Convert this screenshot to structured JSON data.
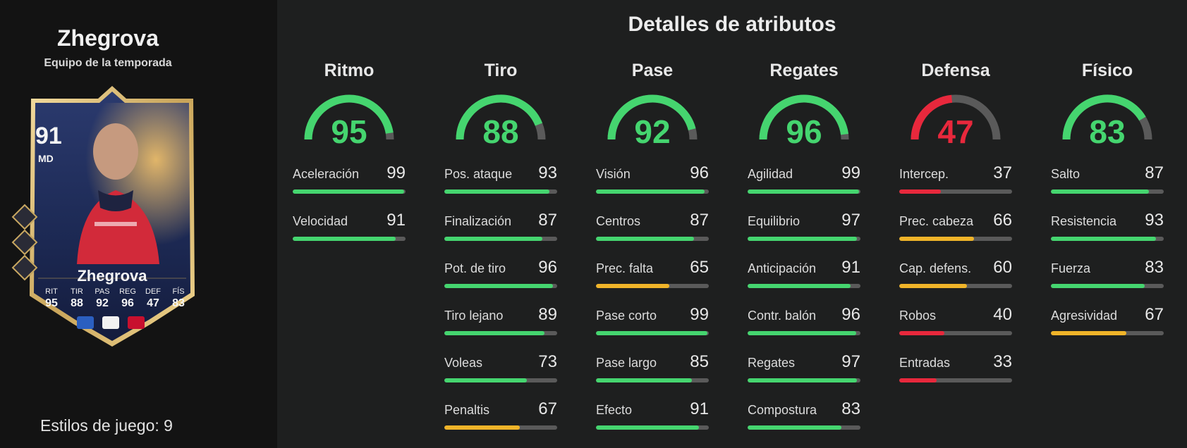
{
  "title": "Detalles de atributos",
  "player": {
    "name": "Zhegrova",
    "version": "Equipo de la temporada",
    "rating": "91",
    "position": "MD",
    "card_name": "Zhegrova",
    "playstyles_label": "Estilos de juego: 9",
    "card_stats": [
      {
        "label": "RIT",
        "value": "95"
      },
      {
        "label": "TIR",
        "value": "88"
      },
      {
        "label": "PAS",
        "value": "92"
      },
      {
        "label": "REG",
        "value": "96"
      },
      {
        "label": "DEF",
        "value": "47"
      },
      {
        "label": "FÍS",
        "value": "83"
      }
    ],
    "badges": [
      "nation-flag-icon",
      "league-logo-icon",
      "club-crest-icon"
    ]
  },
  "colors": {
    "green": "#45d56f",
    "yellow": "#f0b429",
    "red": "#e8283c",
    "track": "#5a5a5a"
  },
  "categories": [
    {
      "name": "Ritmo",
      "value": 95,
      "color": "green",
      "attrs": [
        {
          "name": "Aceleración",
          "value": 99,
          "color": "green"
        },
        {
          "name": "Velocidad",
          "value": 91,
          "color": "green"
        }
      ]
    },
    {
      "name": "Tiro",
      "value": 88,
      "color": "green",
      "attrs": [
        {
          "name": "Pos. ataque",
          "value": 93,
          "color": "green"
        },
        {
          "name": "Finalización",
          "value": 87,
          "color": "green"
        },
        {
          "name": "Pot. de tiro",
          "value": 96,
          "color": "green"
        },
        {
          "name": "Tiro lejano",
          "value": 89,
          "color": "green"
        },
        {
          "name": "Voleas",
          "value": 73,
          "color": "green"
        },
        {
          "name": "Penaltis",
          "value": 67,
          "color": "yellow"
        }
      ]
    },
    {
      "name": "Pase",
      "value": 92,
      "color": "green",
      "attrs": [
        {
          "name": "Visión",
          "value": 96,
          "color": "green"
        },
        {
          "name": "Centros",
          "value": 87,
          "color": "green"
        },
        {
          "name": "Prec. falta",
          "value": 65,
          "color": "yellow"
        },
        {
          "name": "Pase corto",
          "value": 99,
          "color": "green"
        },
        {
          "name": "Pase largo",
          "value": 85,
          "color": "green"
        },
        {
          "name": "Efecto",
          "value": 91,
          "color": "green"
        }
      ]
    },
    {
      "name": "Regates",
      "value": 96,
      "color": "green",
      "attrs": [
        {
          "name": "Agilidad",
          "value": 99,
          "color": "green"
        },
        {
          "name": "Equilibrio",
          "value": 97,
          "color": "green"
        },
        {
          "name": "Anticipación",
          "value": 91,
          "color": "green"
        },
        {
          "name": "Contr. balón",
          "value": 96,
          "color": "green"
        },
        {
          "name": "Regates",
          "value": 97,
          "color": "green"
        },
        {
          "name": "Compostura",
          "value": 83,
          "color": "green"
        }
      ]
    },
    {
      "name": "Defensa",
      "value": 47,
      "color": "red",
      "attrs": [
        {
          "name": "Intercep.",
          "value": 37,
          "color": "red"
        },
        {
          "name": "Prec. cabeza",
          "value": 66,
          "color": "yellow"
        },
        {
          "name": "Cap. defens.",
          "value": 60,
          "color": "yellow"
        },
        {
          "name": "Robos",
          "value": 40,
          "color": "red"
        },
        {
          "name": "Entradas",
          "value": 33,
          "color": "red"
        }
      ]
    },
    {
      "name": "Físico",
      "value": 83,
      "color": "green",
      "attrs": [
        {
          "name": "Salto",
          "value": 87,
          "color": "green"
        },
        {
          "name": "Resistencia",
          "value": 93,
          "color": "green"
        },
        {
          "name": "Fuerza",
          "value": 83,
          "color": "green"
        },
        {
          "name": "Agresividad",
          "value": 67,
          "color": "yellow"
        }
      ]
    }
  ]
}
